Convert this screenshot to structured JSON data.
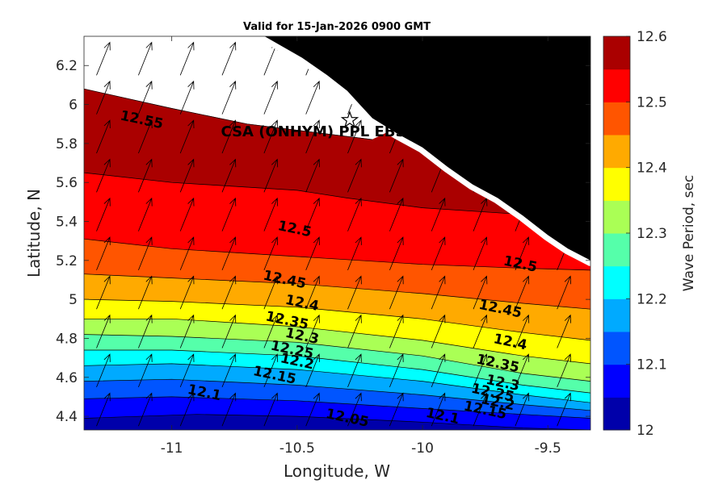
{
  "chart_data": {
    "type": "heatmap",
    "title": "Valid for 15-Jan-2026 0900 GMT",
    "xlabel": "Longitude, W",
    "ylabel": "Latitude, N",
    "colorbar_label": "Wave Period, sec",
    "xlim": [
      -11.35,
      -9.33
    ],
    "ylim": [
      4.33,
      6.35
    ],
    "x_ticks": [
      -11,
      -10.5,
      -10,
      -9.5
    ],
    "x_tick_labels": [
      "-11",
      "-10.5",
      "-10",
      "-9.5"
    ],
    "y_ticks": [
      4.4,
      4.6,
      4.8,
      5,
      5.2,
      5.4,
      5.6,
      5.8,
      6,
      6.2
    ],
    "y_tick_labels": [
      "4.4",
      "4.6",
      "4.8",
      "5",
      "5.2",
      "5.4",
      "5.6",
      "5.8",
      "6",
      "6.2"
    ],
    "color_levels": [
      12,
      12.05,
      12.1,
      12.15,
      12.2,
      12.25,
      12.3,
      12.35,
      12.4,
      12.45,
      12.5,
      12.55,
      12.6
    ],
    "colorbar_ticks": [
      12,
      12.1,
      12.2,
      12.3,
      12.4,
      12.5,
      12.6
    ],
    "colorbar_tick_labels": [
      "12",
      "12.1",
      "12.2",
      "12.3",
      "12.4",
      "12.5",
      "12.6"
    ],
    "level_colors": [
      "#0000aa",
      "#0000ff",
      "#0055ff",
      "#00aaff",
      "#00ffff",
      "#55ffaa",
      "#aaff55",
      "#ffff00",
      "#ffaa00",
      "#ff5500",
      "#ff0000",
      "#aa0000"
    ],
    "contour_lines": [
      {
        "level": 12.05,
        "points": [
          [
            -11.35,
            4.39
          ],
          [
            -10.9,
            4.41
          ],
          [
            -10.5,
            4.4
          ],
          [
            -10.0,
            4.37
          ],
          [
            -9.6,
            4.34
          ],
          [
            -9.33,
            4.33
          ]
        ]
      },
      {
        "level": 12.1,
        "points": [
          [
            -11.35,
            4.49
          ],
          [
            -11.0,
            4.5
          ],
          [
            -10.5,
            4.48
          ],
          [
            -10.0,
            4.44
          ],
          [
            -9.6,
            4.41
          ],
          [
            -9.33,
            4.39
          ]
        ]
      },
      {
        "level": 12.15,
        "points": [
          [
            -11.35,
            4.58
          ],
          [
            -11.0,
            4.59
          ],
          [
            -10.5,
            4.56
          ],
          [
            -10.0,
            4.51
          ],
          [
            -9.6,
            4.46
          ],
          [
            -9.33,
            4.43
          ]
        ]
      },
      {
        "level": 12.2,
        "points": [
          [
            -11.35,
            4.66
          ],
          [
            -11.0,
            4.67
          ],
          [
            -10.5,
            4.64
          ],
          [
            -10.0,
            4.58
          ],
          [
            -9.6,
            4.51
          ],
          [
            -9.33,
            4.47
          ]
        ]
      },
      {
        "level": 12.25,
        "points": [
          [
            -11.35,
            4.74
          ],
          [
            -11.0,
            4.74
          ],
          [
            -10.5,
            4.71
          ],
          [
            -10.0,
            4.64
          ],
          [
            -9.6,
            4.56
          ],
          [
            -9.33,
            4.52
          ]
        ]
      },
      {
        "level": 12.3,
        "points": [
          [
            -11.35,
            4.82
          ],
          [
            -11.0,
            4.81
          ],
          [
            -10.5,
            4.78
          ],
          [
            -10.0,
            4.71
          ],
          [
            -9.6,
            4.62
          ],
          [
            -9.33,
            4.58
          ]
        ]
      },
      {
        "level": 12.35,
        "points": [
          [
            -11.35,
            4.9
          ],
          [
            -11.0,
            4.9
          ],
          [
            -10.5,
            4.86
          ],
          [
            -10.0,
            4.79
          ],
          [
            -9.6,
            4.71
          ],
          [
            -9.33,
            4.67
          ]
        ]
      },
      {
        "level": 12.4,
        "points": [
          [
            -11.35,
            5.0
          ],
          [
            -11.0,
            4.99
          ],
          [
            -10.5,
            4.96
          ],
          [
            -10.0,
            4.9
          ],
          [
            -9.6,
            4.83
          ],
          [
            -9.33,
            4.79
          ]
        ]
      },
      {
        "level": 12.45,
        "points": [
          [
            -11.35,
            5.13
          ],
          [
            -11.0,
            5.11
          ],
          [
            -10.5,
            5.08
          ],
          [
            -10.0,
            5.03
          ],
          [
            -9.6,
            4.98
          ],
          [
            -9.33,
            4.95
          ]
        ]
      },
      {
        "level": 12.5,
        "points": [
          [
            -11.35,
            5.31
          ],
          [
            -11.0,
            5.26
          ],
          [
            -10.5,
            5.22
          ],
          [
            -10.0,
            5.18
          ],
          [
            -9.6,
            5.16
          ],
          [
            -9.33,
            5.15
          ]
        ]
      },
      {
        "level": 12.55,
        "points": [
          [
            -11.35,
            5.65
          ],
          [
            -11.0,
            5.6
          ],
          [
            -10.5,
            5.56
          ],
          [
            -10.3,
            5.52
          ],
          [
            -10.0,
            5.47
          ],
          [
            -9.65,
            5.44
          ]
        ]
      },
      {
        "level": 12.6,
        "points": [
          [
            -11.35,
            6.08
          ],
          [
            -11.0,
            5.98
          ],
          [
            -10.7,
            5.9
          ],
          [
            -10.45,
            5.86
          ],
          [
            -10.2,
            5.82
          ]
        ]
      }
    ],
    "contour_labels": [
      {
        "text": "12.05",
        "lon": -10.3,
        "lat": 4.39
      },
      {
        "text": "12.1",
        "lon": -10.87,
        "lat": 4.52
      },
      {
        "text": "12.1",
        "lon": -9.92,
        "lat": 4.4
      },
      {
        "text": "12.15",
        "lon": -10.59,
        "lat": 4.61
      },
      {
        "text": "12.15",
        "lon": -9.75,
        "lat": 4.43
      },
      {
        "text": "12.2",
        "lon": -10.5,
        "lat": 4.68
      },
      {
        "text": "12.2",
        "lon": -9.7,
        "lat": 4.47
      },
      {
        "text": "12.25",
        "lon": -10.52,
        "lat": 4.74
      },
      {
        "text": "12.25",
        "lon": -9.72,
        "lat": 4.52
      },
      {
        "text": "12.3",
        "lon": -10.48,
        "lat": 4.81
      },
      {
        "text": "12.3",
        "lon": -9.68,
        "lat": 4.57
      },
      {
        "text": "12.35",
        "lon": -10.54,
        "lat": 4.89
      },
      {
        "text": "12.35",
        "lon": -9.7,
        "lat": 4.67
      },
      {
        "text": "12.4",
        "lon": -10.48,
        "lat": 4.98
      },
      {
        "text": "12.4",
        "lon": -9.65,
        "lat": 4.78
      },
      {
        "text": "12.45",
        "lon": -10.55,
        "lat": 5.1
      },
      {
        "text": "12.45",
        "lon": -9.69,
        "lat": 4.95
      },
      {
        "text": "12.5",
        "lon": -10.51,
        "lat": 5.36
      },
      {
        "text": "12.5",
        "lon": -9.61,
        "lat": 5.18
      },
      {
        "text": "12.55",
        "lon": -11.12,
        "lat": 5.92
      }
    ],
    "land_boundary": [
      [
        -10.63,
        6.35
      ],
      [
        -10.48,
        6.24
      ],
      [
        -10.38,
        6.15
      ],
      [
        -10.3,
        6.07
      ],
      [
        -10.25,
        6.0
      ],
      [
        -10.2,
        5.93
      ],
      [
        -10.1,
        5.85
      ],
      [
        -10.0,
        5.78
      ],
      [
        -9.9,
        5.68
      ],
      [
        -9.8,
        5.59
      ],
      [
        -9.7,
        5.52
      ],
      [
        -9.6,
        5.43
      ],
      [
        -9.5,
        5.33
      ],
      [
        -9.42,
        5.26
      ],
      [
        -9.33,
        5.2
      ]
    ],
    "site": {
      "name": "CSA (ONHYM) PPL EBS",
      "lon": -10.29,
      "lat": 5.92
    },
    "wave_direction_deg": 22,
    "arrow_grid": {
      "lon_start": -11.3,
      "lon_step": 0.167,
      "lat_start": 4.35,
      "lat_step": 0.2
    }
  }
}
